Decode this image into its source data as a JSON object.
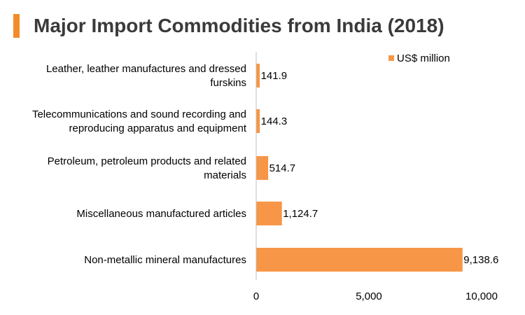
{
  "header": {
    "title": "Major Import Commodities from India (2018)"
  },
  "colors": {
    "accent": "#f28c28",
    "bar": "#f79646"
  },
  "chart_data": {
    "type": "bar",
    "orientation": "horizontal",
    "title": "Major Import Commodities from India (2018)",
    "categories": [
      [
        "Leather, leather manufactures and dressed",
        "furskins"
      ],
      [
        "Telecommunications and sound recording and",
        "reproducing apparatus and equipment"
      ],
      [
        "Petroleum, petroleum products and related",
        "materials"
      ],
      [
        "Miscellaneous manufactured articles"
      ],
      [
        "Non-metallic mineral manufactures"
      ]
    ],
    "series": [
      {
        "name": "US$ million",
        "values": [
          141.9,
          144.3,
          514.7,
          1124.7,
          9138.6
        ],
        "value_labels": [
          "141.9",
          "144.3",
          "514.7",
          "1,124.7",
          "9,138.6"
        ]
      }
    ],
    "xlim": [
      0,
      10000
    ],
    "xticks": [
      0,
      5000,
      10000
    ],
    "xtick_labels": [
      "0",
      "5,000",
      "10,000"
    ],
    "legend_position": "top-right",
    "grid": false
  }
}
